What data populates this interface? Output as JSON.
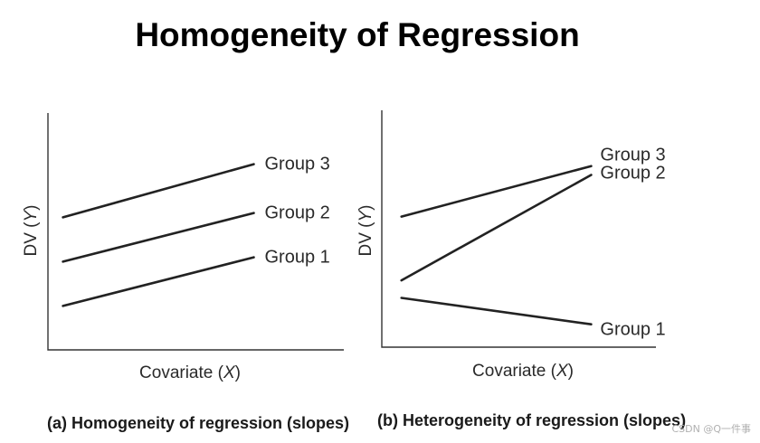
{
  "title": "Homogeneity of Regression",
  "watermark": "CSDN @Q一件事",
  "chart_data": [
    {
      "type": "line",
      "caption": "(a) Homogeneity of regression (slopes)",
      "xlabel_text": "Covariate (",
      "xlabel_var": "X",
      "xlabel_end": ")",
      "ylabel_text": "DV (",
      "ylabel_var": "Y",
      "ylabel_end": ")",
      "xlim": [
        0,
        10
      ],
      "ylim": [
        0,
        10
      ],
      "ticks": "none",
      "grid": false,
      "legend": "line-end labels",
      "series": [
        {
          "name": "Group 3",
          "x": [
            0.7,
            9.6
          ],
          "y": [
            5.9,
            8.3
          ]
        },
        {
          "name": "Group 2",
          "x": [
            0.7,
            9.6
          ],
          "y": [
            3.9,
            6.1
          ]
        },
        {
          "name": "Group 1",
          "x": [
            0.7,
            9.6
          ],
          "y": [
            1.9,
            4.1
          ]
        }
      ]
    },
    {
      "type": "line",
      "caption": "(b) Heterogeneity of regression (slopes)",
      "xlabel_text": "Covariate (",
      "xlabel_var": "X",
      "xlabel_end": ")",
      "ylabel_text": "DV (",
      "ylabel_var": "Y",
      "ylabel_end": ")",
      "xlim": [
        0,
        10
      ],
      "ylim": [
        0,
        10
      ],
      "ticks": "none",
      "grid": false,
      "legend": "line-end labels",
      "series": [
        {
          "name": "Group 3",
          "x": [
            0.9,
            9.6
          ],
          "y": [
            5.9,
            8.2
          ]
        },
        {
          "name": "Group 2",
          "x": [
            0.9,
            9.6
          ],
          "y": [
            3.0,
            7.8
          ]
        },
        {
          "name": "Group 1",
          "x": [
            0.9,
            9.6
          ],
          "y": [
            2.2,
            1.0
          ]
        }
      ]
    }
  ]
}
